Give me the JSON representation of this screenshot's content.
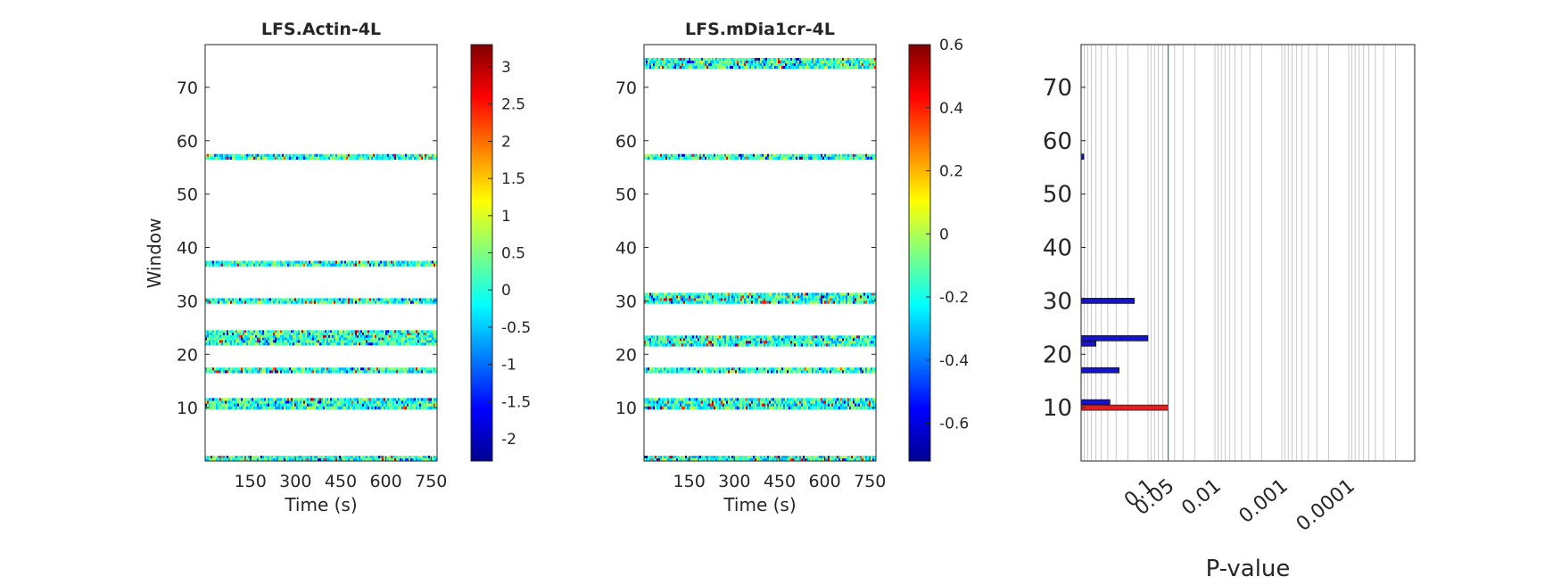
{
  "charts": [
    {
      "type": "heatmap",
      "title": "LFS.Actin-4L",
      "xlabel": "Time (s)",
      "ylabel": "Window",
      "x_ticks": [
        150,
        300,
        450,
        600,
        750
      ],
      "y_ticks": [
        10,
        20,
        30,
        40,
        50,
        60,
        70
      ],
      "xlim": [
        0,
        770
      ],
      "ylim": [
        0,
        78
      ],
      "colorbar": {
        "ticks": [
          3,
          2.5,
          2,
          1.5,
          1,
          0.5,
          0,
          -0.5,
          -1,
          -1.5,
          -2
        ],
        "range": [
          -2.3,
          3.3
        ]
      },
      "bands": [
        {
          "y0": 0,
          "y1": 1
        },
        {
          "y0": 9.7,
          "y1": 11.8
        },
        {
          "y0": 16.5,
          "y1": 17.5
        },
        {
          "y0": 21.7,
          "y1": 24.5
        },
        {
          "y0": 29.5,
          "y1": 30.5
        },
        {
          "y0": 36.5,
          "y1": 37.5
        },
        {
          "y0": 56.5,
          "y1": 57.5
        }
      ]
    },
    {
      "type": "heatmap",
      "title": "LFS.mDia1cr-4L",
      "xlabel": "Time (s)",
      "ylabel": "",
      "x_ticks": [
        150,
        300,
        450,
        600,
        750
      ],
      "y_ticks": [
        10,
        20,
        30,
        40,
        50,
        60,
        70
      ],
      "xlim": [
        0,
        770
      ],
      "ylim": [
        0,
        78
      ],
      "colorbar": {
        "ticks": [
          0.6,
          0.4,
          0.2,
          0,
          -0.2,
          -0.4,
          -0.6
        ],
        "range": [
          -0.72,
          0.6
        ]
      },
      "bands": [
        {
          "y0": 0,
          "y1": 1
        },
        {
          "y0": 9.7,
          "y1": 11.8
        },
        {
          "y0": 16.5,
          "y1": 17.5
        },
        {
          "y0": 21.5,
          "y1": 23.5
        },
        {
          "y0": 29.5,
          "y1": 31.5
        },
        {
          "y0": 56.5,
          "y1": 57.5
        },
        {
          "y0": 73.5,
          "y1": 75.5
        }
      ]
    }
  ],
  "chart_data": {
    "type": "bar",
    "orientation": "horizontal",
    "xlabel": "P-value",
    "ylabel": "",
    "x_tick_labels": [
      "0.1",
      "0.05",
      "0.01",
      "0.001",
      "0.0001"
    ],
    "x_tick_values": [
      0.1,
      0.05,
      0.01,
      0.001,
      0.0001
    ],
    "y_ticks": [
      10,
      20,
      30,
      40,
      50,
      60,
      70
    ],
    "ylim": [
      0,
      78
    ],
    "threshold_line": 0.05,
    "series": [
      {
        "color": "#1414c8",
        "bars": [
          {
            "window": 57,
            "p": 0.92
          },
          {
            "window": 30,
            "p": 0.16
          },
          {
            "window": 23,
            "p": 0.1
          },
          {
            "window": 22,
            "p": 0.6
          },
          {
            "window": 17,
            "p": 0.27
          },
          {
            "window": 11,
            "p": 0.37
          }
        ]
      },
      {
        "color": "#e02020",
        "bars": [
          {
            "window": 10,
            "p": 0.05
          }
        ]
      }
    ]
  }
}
